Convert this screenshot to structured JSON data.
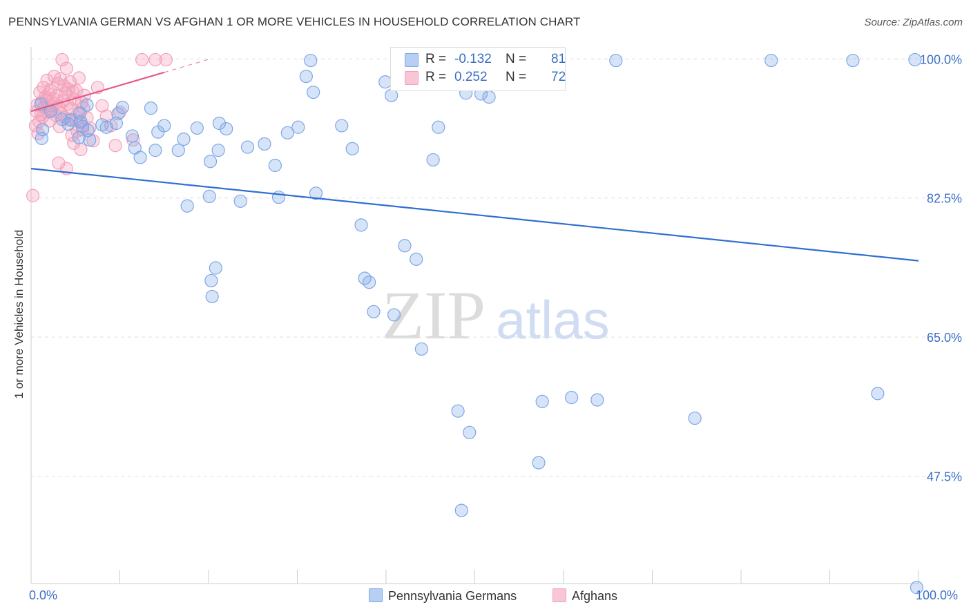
{
  "header": {
    "title": "PENNSYLVANIA GERMAN VS AFGHAN 1 OR MORE VEHICLES IN HOUSEHOLD CORRELATION CHART",
    "source": "Source: ZipAtlas.com"
  },
  "legend": {
    "rows": [
      {
        "r_label": "R =",
        "r_value": "-0.132",
        "n_label": "N =",
        "n_value": "81"
      },
      {
        "r_label": "R =",
        "r_value": "0.252",
        "n_label": "N =",
        "n_value": "72"
      }
    ]
  },
  "colors": {
    "pennsylvania_germans": "#7aa7e8",
    "pennsylvania_germans_line": "#2f6fd0",
    "afghans": "#f4a0bb",
    "afghans_line": "#e45a86",
    "axis_text": "#3b6fc4",
    "grid": "#dddddd"
  },
  "watermark": {
    "zip": "ZIP",
    "atlas": "atlas"
  },
  "chart_data": {
    "type": "scatter",
    "title": "PENNSYLVANIA GERMAN VS AFGHAN 1 OR MORE VEHICLES IN HOUSEHOLD CORRELATION CHART",
    "xlabel": "",
    "ylabel": "1 or more Vehicles in Household",
    "x_tick_labels": [
      "0.0%",
      "100.0%"
    ],
    "y_tick_labels": [
      "100.0%",
      "82.5%",
      "65.0%",
      "47.5%"
    ],
    "y_ticks": [
      100.0,
      82.5,
      65.0,
      47.5
    ],
    "xlim": [
      0,
      100
    ],
    "ylim": [
      34,
      101.5
    ],
    "grid": true,
    "legend_position": "bottom-center",
    "series": [
      {
        "name": "Pennsylvania Germans",
        "r": -0.132,
        "n": 81,
        "trend": {
          "x": [
            0,
            100
          ],
          "y": [
            86.2,
            74.6
          ]
        },
        "points": [
          [
            1.1,
            94.3
          ],
          [
            1.3,
            91.1
          ],
          [
            1.2,
            90.0
          ],
          [
            2.2,
            93.4
          ],
          [
            3.5,
            92.4
          ],
          [
            4.2,
            91.8
          ],
          [
            4.5,
            92.3
          ],
          [
            5.5,
            93.2
          ],
          [
            5.4,
            90.1
          ],
          [
            5.6,
            92.1
          ],
          [
            5.8,
            91.5
          ],
          [
            6.3,
            94.2
          ],
          [
            6.4,
            91.0
          ],
          [
            6.6,
            89.8
          ],
          [
            8.0,
            91.7
          ],
          [
            8.5,
            91.4
          ],
          [
            9.6,
            91.9
          ],
          [
            9.8,
            93.1
          ],
          [
            10.3,
            93.9
          ],
          [
            11.4,
            90.3
          ],
          [
            11.7,
            88.8
          ],
          [
            12.3,
            87.6
          ],
          [
            13.5,
            93.8
          ],
          [
            14.0,
            88.5
          ],
          [
            14.3,
            90.8
          ],
          [
            15.0,
            91.6
          ],
          [
            16.6,
            88.5
          ],
          [
            17.2,
            89.9
          ],
          [
            17.6,
            81.5
          ],
          [
            18.7,
            91.3
          ],
          [
            20.2,
            87.1
          ],
          [
            20.1,
            82.7
          ],
          [
            20.3,
            72.1
          ],
          [
            20.4,
            70.1
          ],
          [
            20.8,
            73.7
          ],
          [
            21.1,
            88.5
          ],
          [
            21.2,
            91.9
          ],
          [
            22.0,
            91.2
          ],
          [
            23.6,
            82.1
          ],
          [
            24.4,
            88.9
          ],
          [
            26.3,
            89.3
          ],
          [
            27.5,
            86.6
          ],
          [
            27.9,
            82.6
          ],
          [
            28.9,
            90.7
          ],
          [
            31.0,
            97.8
          ],
          [
            31.5,
            99.8
          ],
          [
            30.1,
            91.4
          ],
          [
            31.8,
            95.8
          ],
          [
            32.1,
            83.1
          ],
          [
            35.0,
            91.6
          ],
          [
            36.2,
            88.7
          ],
          [
            37.2,
            79.1
          ],
          [
            37.6,
            72.4
          ],
          [
            38.1,
            71.9
          ],
          [
            38.6,
            68.2
          ],
          [
            39.9,
            97.1
          ],
          [
            40.6,
            95.4
          ],
          [
            40.9,
            67.8
          ],
          [
            42.1,
            76.5
          ],
          [
            43.4,
            74.8
          ],
          [
            44.0,
            63.5
          ],
          [
            45.3,
            87.3
          ],
          [
            45.9,
            91.4
          ],
          [
            47.5,
            99.7
          ],
          [
            48.1,
            55.7
          ],
          [
            48.5,
            43.2
          ],
          [
            49.0,
            95.7
          ],
          [
            49.4,
            53.0
          ],
          [
            50.7,
            95.6
          ],
          [
            51.6,
            95.2
          ],
          [
            57.2,
            49.2
          ],
          [
            57.6,
            56.9
          ],
          [
            60.9,
            57.4
          ],
          [
            63.8,
            57.1
          ],
          [
            65.9,
            99.8
          ],
          [
            74.8,
            54.8
          ],
          [
            83.4,
            99.8
          ],
          [
            92.6,
            99.8
          ],
          [
            95.4,
            57.9
          ],
          [
            99.6,
            99.9
          ],
          [
            99.8,
            33.5
          ]
        ]
      },
      {
        "name": "Afghans",
        "r": 0.252,
        "n": 72,
        "trend": {
          "x": [
            0,
            15
          ],
          "y": [
            93.4,
            98.3
          ]
        },
        "points": [
          [
            0.2,
            82.8
          ],
          [
            0.5,
            91.6
          ],
          [
            0.6,
            93.4
          ],
          [
            0.7,
            94.2
          ],
          [
            0.8,
            90.6
          ],
          [
            0.9,
            92.1
          ],
          [
            1.0,
            95.8
          ],
          [
            1.1,
            93.0
          ],
          [
            1.2,
            94.6
          ],
          [
            1.3,
            92.7
          ],
          [
            1.4,
            96.4
          ],
          [
            1.5,
            93.9
          ],
          [
            1.6,
            95.2
          ],
          [
            1.7,
            94.8
          ],
          [
            1.8,
            97.3
          ],
          [
            1.9,
            93.3
          ],
          [
            2.0,
            95.6
          ],
          [
            2.1,
            92.2
          ],
          [
            2.2,
            96.1
          ],
          [
            2.3,
            94.1
          ],
          [
            2.4,
            93.6
          ],
          [
            2.5,
            95.0
          ],
          [
            2.6,
            97.8
          ],
          [
            2.7,
            94.4
          ],
          [
            2.8,
            92.9
          ],
          [
            2.9,
            95.3
          ],
          [
            3.0,
            96.9
          ],
          [
            3.1,
            94.0
          ],
          [
            3.2,
            91.5
          ],
          [
            3.3,
            97.5
          ],
          [
            3.4,
            93.1
          ],
          [
            3.5,
            99.9
          ],
          [
            3.6,
            94.7
          ],
          [
            3.7,
            96.6
          ],
          [
            3.8,
            92.6
          ],
          [
            3.9,
            95.7
          ],
          [
            4.0,
            98.8
          ],
          [
            4.1,
            94.3
          ],
          [
            4.2,
            96.2
          ],
          [
            4.3,
            92.4
          ],
          [
            4.4,
            97.1
          ],
          [
            4.5,
            93.7
          ],
          [
            4.6,
            90.4
          ],
          [
            4.7,
            95.9
          ],
          [
            4.8,
            89.4
          ],
          [
            4.9,
            94.9
          ],
          [
            5.0,
            92.3
          ],
          [
            5.1,
            96.0
          ],
          [
            5.2,
            90.9
          ],
          [
            5.3,
            93.2
          ],
          [
            5.4,
            97.6
          ],
          [
            5.5,
            92.0
          ],
          [
            5.6,
            88.6
          ],
          [
            5.7,
            94.5
          ],
          [
            5.8,
            91.1
          ],
          [
            5.9,
            93.8
          ],
          [
            6.0,
            95.4
          ],
          [
            6.3,
            92.6
          ],
          [
            6.6,
            91.3
          ],
          [
            7.0,
            89.7
          ],
          [
            7.5,
            96.4
          ],
          [
            8.0,
            94.1
          ],
          [
            8.5,
            92.8
          ],
          [
            9.0,
            91.6
          ],
          [
            9.5,
            89.1
          ],
          [
            10.0,
            93.3
          ],
          [
            11.5,
            89.8
          ],
          [
            12.5,
            99.9
          ],
          [
            14.0,
            99.9
          ],
          [
            15.2,
            99.9
          ],
          [
            3.1,
            86.9
          ],
          [
            4.0,
            86.2
          ]
        ]
      }
    ]
  },
  "bottom_legend": {
    "items": [
      {
        "label": "Pennsylvania Germans"
      },
      {
        "label": "Afghans"
      }
    ]
  }
}
